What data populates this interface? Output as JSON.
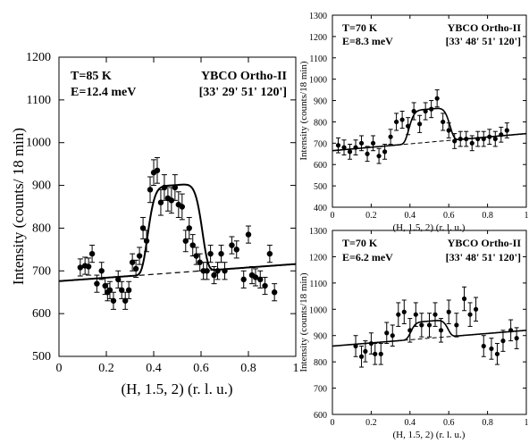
{
  "chart_data": [
    {
      "type": "scatter",
      "xlabel": "(H, 1.5, 2) (r. l. u.)",
      "ylabel": "Intensity (counts/ 18 min)",
      "xlim": [
        0,
        1
      ],
      "ylim": [
        500,
        1200
      ],
      "xticks": [
        0,
        0.2,
        0.4,
        0.6,
        0.8,
        1
      ],
      "xtick_labels": [
        "0",
        "0.2",
        "0.4",
        "0.6",
        "0.8",
        "1"
      ],
      "yticks": [
        500,
        600,
        700,
        800,
        900,
        1000,
        1100,
        1200
      ],
      "ytick_labels": [
        "500",
        "600",
        "700",
        "800",
        "900",
        "1000",
        "1100",
        "1200"
      ],
      "annotations": [
        "T=85 K",
        "E=12.4 meV",
        "YBCO Ortho-II",
        "[33' 29' 51' 120']"
      ],
      "grid": false,
      "points": [
        {
          "x": 0.09,
          "y": 708,
          "err": 20
        },
        {
          "x": 0.11,
          "y": 712,
          "err": 20
        },
        {
          "x": 0.125,
          "y": 710,
          "err": 20
        },
        {
          "x": 0.14,
          "y": 740,
          "err": 20
        },
        {
          "x": 0.16,
          "y": 670,
          "err": 20
        },
        {
          "x": 0.18,
          "y": 700,
          "err": 20
        },
        {
          "x": 0.195,
          "y": 665,
          "err": 20
        },
        {
          "x": 0.205,
          "y": 650,
          "err": 20
        },
        {
          "x": 0.215,
          "y": 655,
          "err": 20
        },
        {
          "x": 0.23,
          "y": 630,
          "err": 20
        },
        {
          "x": 0.25,
          "y": 680,
          "err": 20
        },
        {
          "x": 0.265,
          "y": 655,
          "err": 20
        },
        {
          "x": 0.28,
          "y": 630,
          "err": 20
        },
        {
          "x": 0.295,
          "y": 655,
          "err": 20
        },
        {
          "x": 0.31,
          "y": 720,
          "err": 20
        },
        {
          "x": 0.325,
          "y": 705,
          "err": 20
        },
        {
          "x": 0.34,
          "y": 735,
          "err": 20
        },
        {
          "x": 0.355,
          "y": 800,
          "err": 25
        },
        {
          "x": 0.37,
          "y": 770,
          "err": 25
        },
        {
          "x": 0.385,
          "y": 890,
          "err": 30
        },
        {
          "x": 0.4,
          "y": 930,
          "err": 30
        },
        {
          "x": 0.415,
          "y": 935,
          "err": 30
        },
        {
          "x": 0.43,
          "y": 860,
          "err": 30
        },
        {
          "x": 0.445,
          "y": 895,
          "err": 30
        },
        {
          "x": 0.46,
          "y": 870,
          "err": 30
        },
        {
          "x": 0.475,
          "y": 865,
          "err": 30
        },
        {
          "x": 0.49,
          "y": 895,
          "err": 30
        },
        {
          "x": 0.505,
          "y": 855,
          "err": 30
        },
        {
          "x": 0.52,
          "y": 850,
          "err": 30
        },
        {
          "x": 0.535,
          "y": 770,
          "err": 25
        },
        {
          "x": 0.55,
          "y": 800,
          "err": 25
        },
        {
          "x": 0.565,
          "y": 760,
          "err": 25
        },
        {
          "x": 0.58,
          "y": 735,
          "err": 20
        },
        {
          "x": 0.595,
          "y": 720,
          "err": 20
        },
        {
          "x": 0.61,
          "y": 700,
          "err": 20
        },
        {
          "x": 0.625,
          "y": 700,
          "err": 20
        },
        {
          "x": 0.64,
          "y": 740,
          "err": 20
        },
        {
          "x": 0.655,
          "y": 690,
          "err": 20
        },
        {
          "x": 0.67,
          "y": 700,
          "err": 20
        },
        {
          "x": 0.685,
          "y": 740,
          "err": 20
        },
        {
          "x": 0.7,
          "y": 700,
          "err": 20
        },
        {
          "x": 0.73,
          "y": 760,
          "err": 20
        },
        {
          "x": 0.75,
          "y": 750,
          "err": 20
        },
        {
          "x": 0.78,
          "y": 680,
          "err": 20
        },
        {
          "x": 0.8,
          "y": 785,
          "err": 20
        },
        {
          "x": 0.815,
          "y": 690,
          "err": 20
        },
        {
          "x": 0.83,
          "y": 685,
          "err": 20
        },
        {
          "x": 0.85,
          "y": 680,
          "err": 20
        },
        {
          "x": 0.87,
          "y": 665,
          "err": 20
        },
        {
          "x": 0.89,
          "y": 740,
          "err": 20
        },
        {
          "x": 0.91,
          "y": 650,
          "err": 20
        }
      ],
      "fit": {
        "a": 676,
        "b": 40,
        "amp": 205,
        "center": 0.49,
        "halfwidth": 0.12,
        "power": 6
      },
      "baseline": {
        "a": 676,
        "b": 40
      }
    },
    {
      "type": "scatter",
      "xlabel": "(H, 1.5, 2) (r. l. u.)",
      "ylabel": "Intensity (counts/18 min)",
      "xlim": [
        0,
        1
      ],
      "ylim": [
        400,
        1300
      ],
      "xticks": [
        0,
        0.2,
        0.4,
        0.6,
        0.8,
        1
      ],
      "xtick_labels": [
        "0",
        "0.2",
        "0.4",
        "0.6",
        "0.8",
        "1"
      ],
      "yticks": [
        400,
        500,
        600,
        700,
        800,
        900,
        1000,
        1100,
        1200,
        1300
      ],
      "ytick_labels": [
        "400",
        "500",
        "600",
        "700",
        "800",
        "900",
        "1000",
        "1100",
        "1200",
        "1300"
      ],
      "annotations": [
        "T=70 K",
        "E=8.3 meV",
        "YBCO Ortho-II",
        "[33' 48' 51' 120']"
      ],
      "grid": false,
      "points": [
        {
          "x": 0.03,
          "y": 690,
          "err": 35
        },
        {
          "x": 0.06,
          "y": 680,
          "err": 35
        },
        {
          "x": 0.09,
          "y": 660,
          "err": 35
        },
        {
          "x": 0.12,
          "y": 680,
          "err": 35
        },
        {
          "x": 0.15,
          "y": 700,
          "err": 35
        },
        {
          "x": 0.18,
          "y": 650,
          "err": 35
        },
        {
          "x": 0.21,
          "y": 700,
          "err": 35
        },
        {
          "x": 0.24,
          "y": 640,
          "err": 35
        },
        {
          "x": 0.27,
          "y": 660,
          "err": 35
        },
        {
          "x": 0.3,
          "y": 730,
          "err": 35
        },
        {
          "x": 0.33,
          "y": 800,
          "err": 40
        },
        {
          "x": 0.36,
          "y": 810,
          "err": 40
        },
        {
          "x": 0.39,
          "y": 780,
          "err": 40
        },
        {
          "x": 0.42,
          "y": 850,
          "err": 40
        },
        {
          "x": 0.45,
          "y": 790,
          "err": 40
        },
        {
          "x": 0.48,
          "y": 850,
          "err": 40
        },
        {
          "x": 0.51,
          "y": 860,
          "err": 40
        },
        {
          "x": 0.54,
          "y": 910,
          "err": 40
        },
        {
          "x": 0.57,
          "y": 800,
          "err": 40
        },
        {
          "x": 0.6,
          "y": 760,
          "err": 35
        },
        {
          "x": 0.63,
          "y": 710,
          "err": 35
        },
        {
          "x": 0.66,
          "y": 720,
          "err": 35
        },
        {
          "x": 0.69,
          "y": 720,
          "err": 35
        },
        {
          "x": 0.72,
          "y": 700,
          "err": 35
        },
        {
          "x": 0.75,
          "y": 720,
          "err": 35
        },
        {
          "x": 0.78,
          "y": 720,
          "err": 35
        },
        {
          "x": 0.81,
          "y": 730,
          "err": 35
        },
        {
          "x": 0.84,
          "y": 720,
          "err": 35
        },
        {
          "x": 0.87,
          "y": 740,
          "err": 35
        },
        {
          "x": 0.9,
          "y": 760,
          "err": 35
        }
      ],
      "fit": {
        "a": 665,
        "b": 80,
        "amp": 155,
        "center": 0.5,
        "halfwidth": 0.11,
        "power": 6
      },
      "baseline": {
        "a": 665,
        "b": 80
      }
    },
    {
      "type": "scatter",
      "xlabel": "(H, 1.5, 2) (r. l. u.)",
      "ylabel": "Intensity (counts/18 min)",
      "xlim": [
        0,
        1
      ],
      "ylim": [
        600,
        1300
      ],
      "xticks": [
        0,
        0.2,
        0.4,
        0.6,
        0.8,
        1
      ],
      "xtick_labels": [
        "0",
        "0.2",
        "0.4",
        "0.6",
        "0.8",
        "1"
      ],
      "yticks": [
        600,
        700,
        800,
        900,
        1000,
        1100,
        1200,
        1300
      ],
      "ytick_labels": [
        "600",
        "700",
        "800",
        "900",
        "1000",
        "1100",
        "1200",
        "1300"
      ],
      "annotations": [
        "T=70 K",
        "E=6.2 meV",
        "YBCO Ortho-II",
        "[33' 48' 51' 120']"
      ],
      "grid": false,
      "points": [
        {
          "x": 0.12,
          "y": 860,
          "err": 40
        },
        {
          "x": 0.15,
          "y": 820,
          "err": 40
        },
        {
          "x": 0.17,
          "y": 840,
          "err": 40
        },
        {
          "x": 0.2,
          "y": 870,
          "err": 40
        },
        {
          "x": 0.22,
          "y": 830,
          "err": 40
        },
        {
          "x": 0.25,
          "y": 830,
          "err": 40
        },
        {
          "x": 0.28,
          "y": 910,
          "err": 40
        },
        {
          "x": 0.31,
          "y": 900,
          "err": 40
        },
        {
          "x": 0.34,
          "y": 980,
          "err": 45
        },
        {
          "x": 0.37,
          "y": 990,
          "err": 45
        },
        {
          "x": 0.4,
          "y": 920,
          "err": 45
        },
        {
          "x": 0.43,
          "y": 980,
          "err": 45
        },
        {
          "x": 0.46,
          "y": 940,
          "err": 45
        },
        {
          "x": 0.5,
          "y": 940,
          "err": 45
        },
        {
          "x": 0.53,
          "y": 980,
          "err": 45
        },
        {
          "x": 0.56,
          "y": 920,
          "err": 45
        },
        {
          "x": 0.6,
          "y": 990,
          "err": 45
        },
        {
          "x": 0.64,
          "y": 940,
          "err": 45
        },
        {
          "x": 0.68,
          "y": 1040,
          "err": 45
        },
        {
          "x": 0.71,
          "y": 980,
          "err": 45
        },
        {
          "x": 0.74,
          "y": 1000,
          "err": 45
        },
        {
          "x": 0.78,
          "y": 860,
          "err": 40
        },
        {
          "x": 0.82,
          "y": 850,
          "err": 40
        },
        {
          "x": 0.85,
          "y": 830,
          "err": 40
        },
        {
          "x": 0.88,
          "y": 880,
          "err": 40
        },
        {
          "x": 0.92,
          "y": 920,
          "err": 40
        },
        {
          "x": 0.95,
          "y": 890,
          "err": 40
        }
      ],
      "fit": {
        "a": 860,
        "b": 60,
        "amp": 65,
        "center": 0.5,
        "halfwidth": 0.1,
        "power": 6
      },
      "baseline": {
        "a": 860,
        "b": 60
      }
    }
  ]
}
